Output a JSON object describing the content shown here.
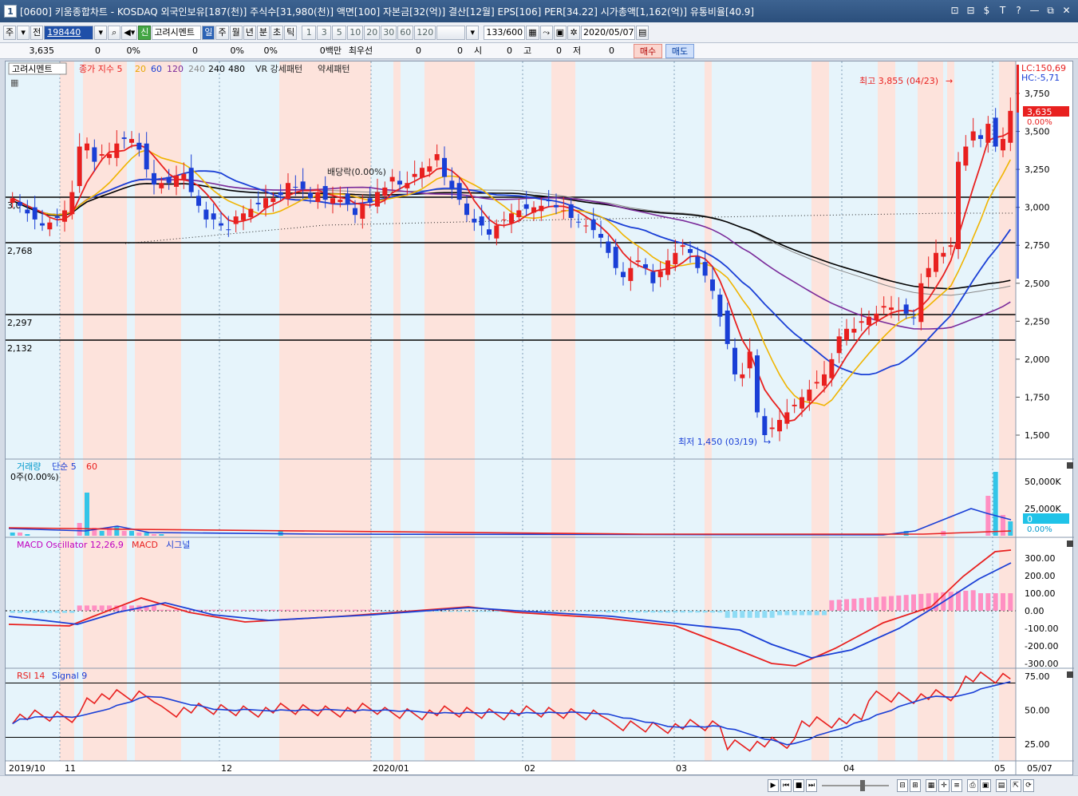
{
  "window": {
    "title": "[0600] 키움종합차트 - KOSDAQ 외국인보유[187(천)] 주식수[31,980(천)] 액면[100] 자본금[32(억)] 결산[12월] EPS[106] PER[34.22] 시가총액[1,162(억)] 유통비율[40.9]",
    "icon_label": "1",
    "buttons": [
      "⊡",
      "⊟",
      "$",
      "T",
      "?",
      "—",
      "⧉",
      "✕"
    ]
  },
  "toolbar": {
    "period_main": "주",
    "adj_label": "전",
    "stock_code": "198440",
    "stock_name": "고려시멘트",
    "credit_badge": "신",
    "tabs": [
      "일",
      "주",
      "월",
      "년",
      "분",
      "초",
      "틱"
    ],
    "active_tab": "일",
    "intervals": [
      "1",
      "3",
      "5",
      "10",
      "20",
      "30",
      "60",
      "120"
    ],
    "count": "133/600",
    "date": "2020/05/07"
  },
  "infobar": {
    "price": "3,635",
    "change": "0",
    "change_pct": "0%",
    "volume": "0",
    "vol_pct": "0%",
    "vol_pct2": "0%",
    "amount": "0백만",
    "quote_label": "최우선",
    "bid": "0",
    "ask": "0",
    "open_label": "시",
    "open": "0",
    "high_label": "고",
    "high": "0",
    "low_label": "저",
    "low": "0",
    "buy_label": "매수",
    "sell_label": "매도"
  },
  "price_panel": {
    "header": {
      "name": "고려시멘트",
      "ma_label": "종가 지수 5",
      "ma_periods": [
        "20",
        "60",
        "120",
        "240",
        "240",
        "480"
      ],
      "vr_label": "VR 강세패턴",
      "weak_label": "약세패턴"
    },
    "yticks": [
      "3,750",
      "3,500",
      "3,250",
      "3,000",
      "2,750",
      "2,500",
      "2,250",
      "2,000",
      "1,750",
      "1,500"
    ],
    "hlines": [
      "2,768",
      "2,297",
      "2,132"
    ],
    "hline_top": "3,0",
    "lc": "LC:150,69",
    "hc": "HC:-5,71",
    "last_price": "3,635",
    "last_pct": "0.00%",
    "ann_high": "최고 3,855 (04/23)",
    "ann_low": "최저 1,450 (03/19)",
    "dividend": "배당락(0.00%)"
  },
  "volume_panel": {
    "title": "거래량",
    "ma_label": "단순 5",
    "ma_60": "60",
    "current": "0주(0.00%)",
    "yticks": [
      "50,000K",
      "25,000K"
    ],
    "last": "0",
    "last_pct": "0.00%"
  },
  "macd_panel": {
    "title": "MACD Oscillator 12,26,9",
    "line": "MACD",
    "signal": "시그널",
    "yticks": [
      "300.00",
      "200.00",
      "100.00",
      "0.00",
      "-100.00",
      "-200.00",
      "-300.00"
    ]
  },
  "rsi_panel": {
    "title": "RSI 14",
    "signal": "Signal 9",
    "yticks": [
      "75.00",
      "50.00",
      "25.00"
    ]
  },
  "xaxis": [
    "2019/10",
    "11",
    "12",
    "2020/01",
    "02",
    "03",
    "04",
    "05",
    "05/07"
  ],
  "colors": {
    "up": "#e8201f",
    "down": "#1a3fd6",
    "ma5": "#e8201f",
    "ma20": "#f0b400",
    "ma60": "#1a3fd6",
    "ma120": "#7a2a9a",
    "ma240": "#000000",
    "bg_shade": "#e6f4fb",
    "bg_red": "#fde3dc"
  }
}
